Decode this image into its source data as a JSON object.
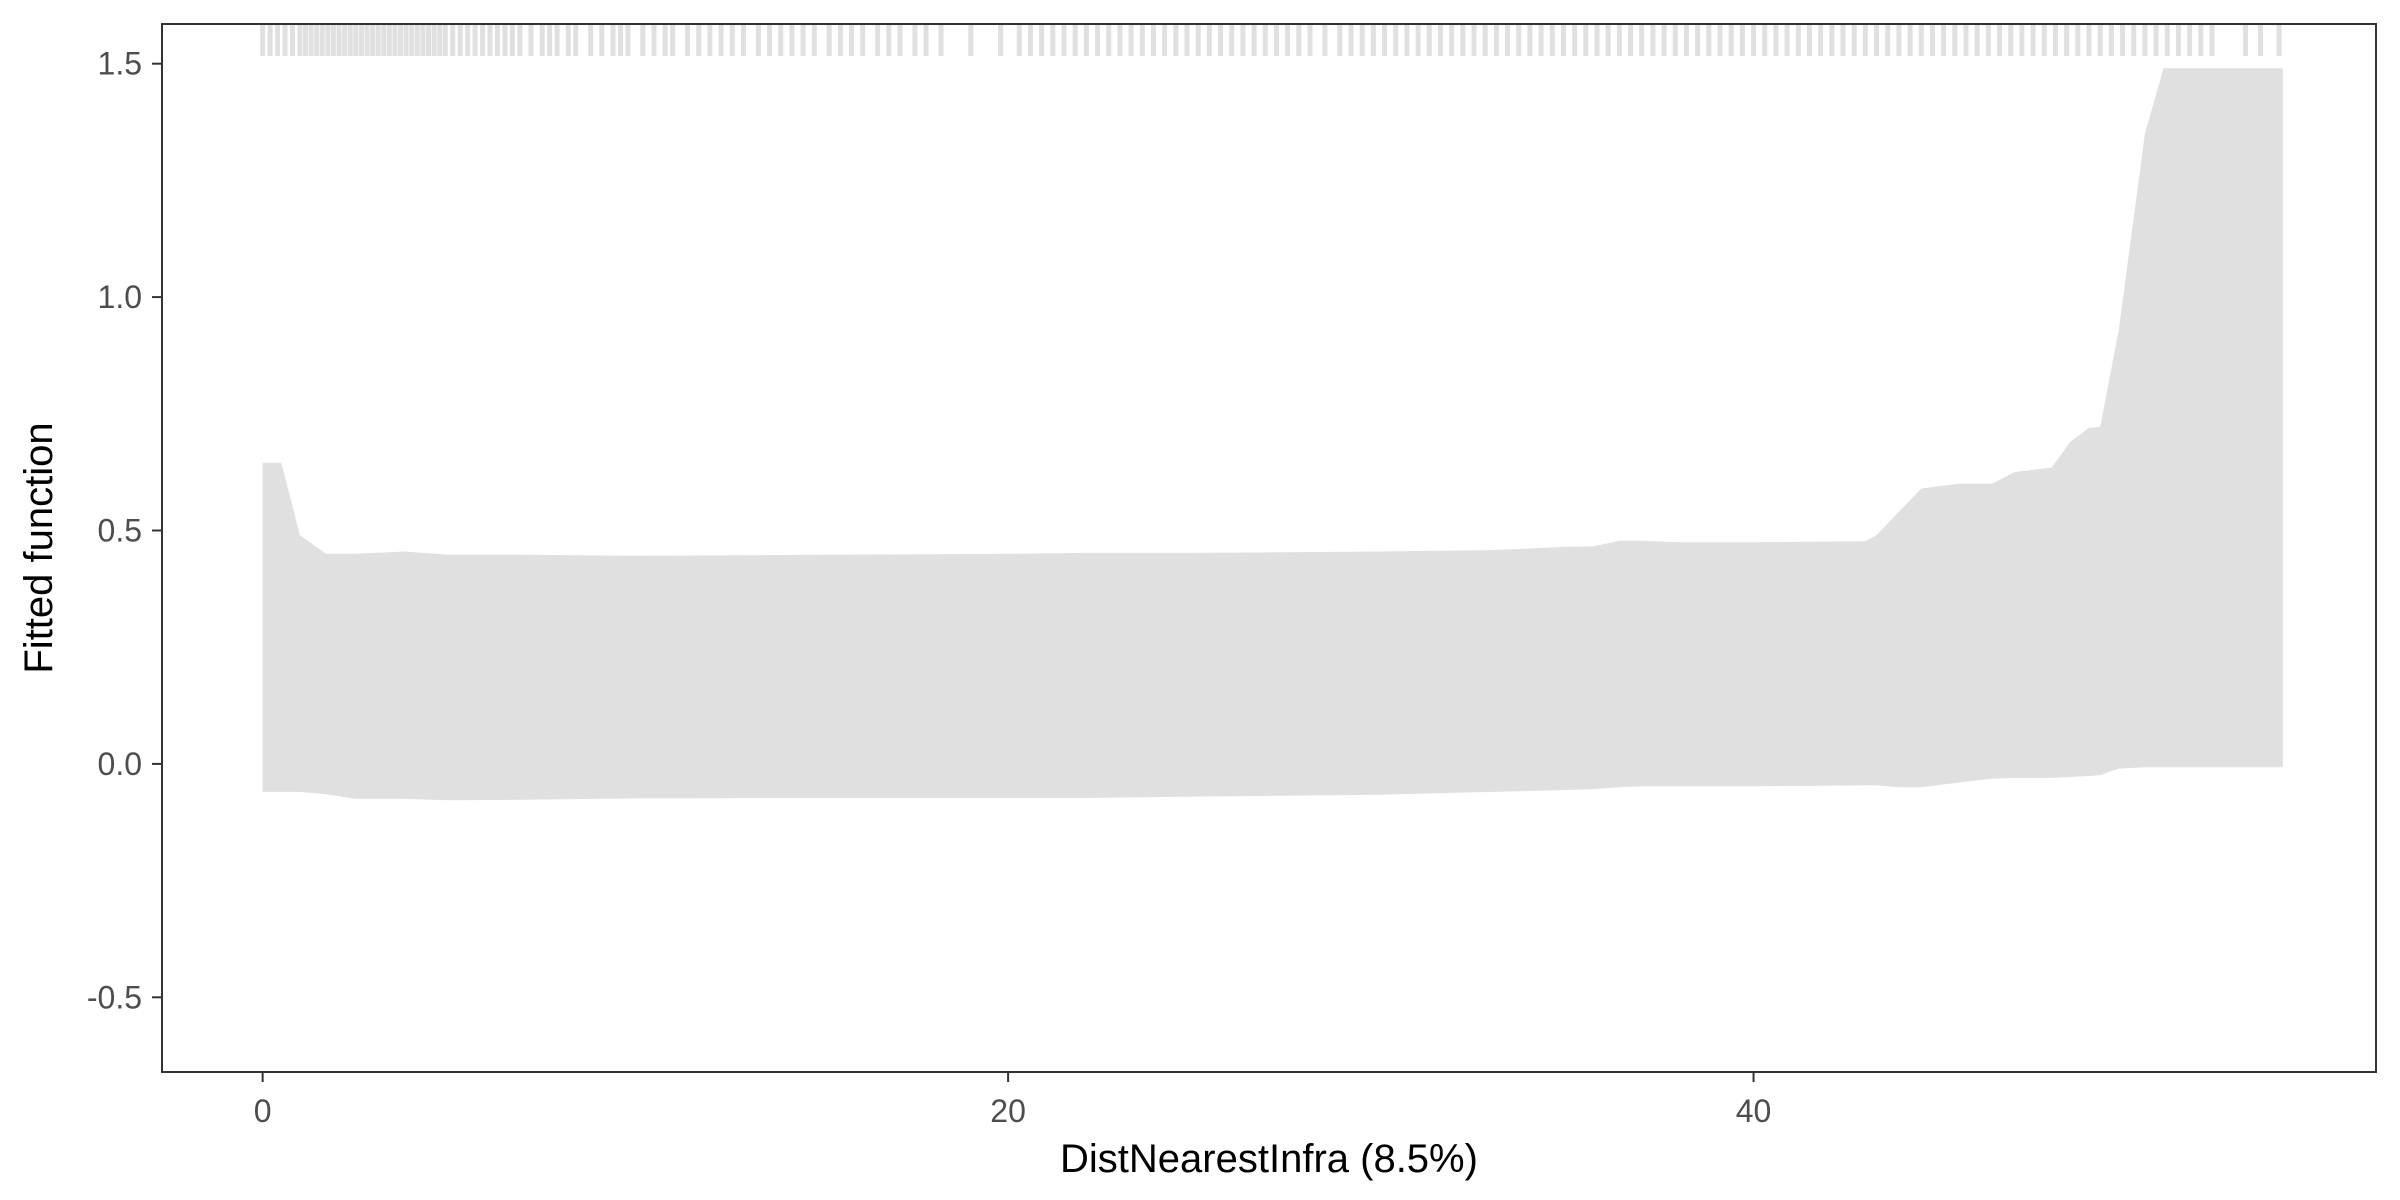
{
  "chart_data": {
    "type": "area",
    "title": "",
    "xlabel": "DistNearestInfra  (8.5%)",
    "ylabel": "Fitted function",
    "xlim": [
      -2.7,
      56.7
    ],
    "ylim": [
      -0.66,
      1.585
    ],
    "x_ticks": [
      0,
      20,
      40
    ],
    "x_tick_labels": [
      "0",
      "20",
      "40"
    ],
    "y_ticks": [
      -0.5,
      0.0,
      0.5,
      1.0,
      1.5
    ],
    "y_tick_labels": [
      "-0.5",
      "0.0",
      "0.5",
      "1.0",
      "1.5"
    ],
    "grid": false,
    "legend": "none",
    "fill_color": "#e0e0e0",
    "rug_color": "#e0e0e0",
    "band": {
      "x": [
        0.0,
        0.5,
        1.0,
        1.7,
        2.5,
        3.8,
        5.0,
        7.0,
        10.0,
        15.0,
        20.0,
        22.0,
        25.0,
        30.0,
        33.0,
        35.0,
        35.7,
        36.4,
        37.0,
        38.0,
        40.0,
        43.0,
        43.3,
        43.9,
        44.5,
        45.0,
        45.5,
        46.0,
        46.4,
        47.0,
        48.0,
        48.5,
        49.0,
        49.3,
        49.8,
        50.5,
        51.0,
        54.2
      ],
      "lower": [
        -0.06,
        -0.06,
        -0.06,
        -0.065,
        -0.075,
        -0.075,
        -0.078,
        -0.077,
        -0.074,
        -0.073,
        -0.073,
        -0.073,
        -0.07,
        -0.066,
        -0.06,
        -0.056,
        -0.054,
        -0.05,
        -0.048,
        -0.048,
        -0.048,
        -0.046,
        -0.046,
        -0.05,
        -0.05,
        -0.045,
        -0.04,
        -0.035,
        -0.032,
        -0.03,
        -0.03,
        -0.028,
        -0.026,
        -0.024,
        -0.01,
        -0.007,
        -0.007,
        -0.007
      ],
      "upper": [
        0.645,
        0.645,
        0.49,
        0.45,
        0.45,
        0.455,
        0.448,
        0.448,
        0.446,
        0.448,
        0.45,
        0.452,
        0.452,
        0.455,
        0.458,
        0.465,
        0.466,
        0.478,
        0.478,
        0.475,
        0.475,
        0.477,
        0.49,
        0.54,
        0.59,
        0.595,
        0.6,
        0.6,
        0.6,
        0.625,
        0.635,
        0.69,
        0.72,
        0.722,
        0.93,
        1.35,
        1.49,
        1.49
      ]
    },
    "rug_x": [
      0.0,
      0.2,
      0.4,
      0.6,
      0.8,
      1.0,
      1.15,
      1.3,
      1.45,
      1.6,
      1.75,
      1.9,
      2.05,
      2.2,
      2.35,
      2.5,
      2.65,
      2.8,
      2.95,
      3.1,
      3.25,
      3.4,
      3.55,
      3.7,
      3.85,
      4.0,
      4.15,
      4.3,
      4.45,
      4.6,
      4.75,
      4.9,
      5.1,
      5.3,
      5.5,
      5.7,
      5.9,
      6.1,
      6.3,
      6.5,
      6.7,
      6.9,
      7.2,
      7.5,
      7.7,
      7.9,
      8.2,
      8.4,
      8.8,
      9.1,
      9.4,
      9.6,
      9.8,
      10.2,
      10.5,
      10.8,
      11.0,
      11.4,
      11.7,
      12.0,
      12.3,
      12.6,
      12.9,
      13.3,
      13.6,
      13.9,
      14.2,
      14.5,
      14.8,
      15.2,
      15.5,
      15.8,
      16.1,
      16.5,
      16.8,
      17.1,
      17.5,
      17.8,
      18.2,
      19.0,
      19.8,
      20.3,
      20.6,
      20.9,
      21.2,
      21.5,
      21.8,
      22.1,
      22.4,
      22.7,
      23.0,
      23.3,
      23.6,
      23.9,
      24.2,
      24.5,
      24.8,
      25.1,
      25.4,
      25.7,
      26.0,
      26.3,
      26.6,
      26.9,
      27.2,
      27.5,
      27.8,
      28.1,
      28.5,
      28.9,
      29.2,
      29.5,
      29.8,
      30.1,
      30.4,
      30.7,
      31.0,
      31.3,
      31.6,
      31.9,
      32.2,
      32.5,
      32.8,
      33.1,
      33.4,
      33.7,
      34.0,
      34.3,
      34.6,
      34.9,
      35.2,
      35.5,
      35.8,
      36.1,
      36.4,
      36.7,
      37.0,
      37.3,
      37.6,
      37.9,
      38.2,
      38.5,
      38.8,
      39.1,
      39.4,
      39.7,
      40.0,
      40.3,
      40.6,
      40.9,
      41.2,
      41.5,
      41.8,
      42.1,
      42.4,
      42.7,
      43.0,
      43.3,
      43.6,
      43.9,
      44.2,
      44.5,
      44.8,
      45.1,
      45.4,
      45.7,
      46.0,
      46.3,
      46.6,
      46.9,
      47.2,
      47.5,
      47.8,
      48.1,
      48.4,
      48.7,
      49.0,
      49.3,
      49.6,
      49.9,
      50.2,
      50.5,
      50.8,
      51.1,
      51.4,
      51.7,
      52.0,
      52.3,
      53.2,
      53.6,
      54.1
    ]
  }
}
